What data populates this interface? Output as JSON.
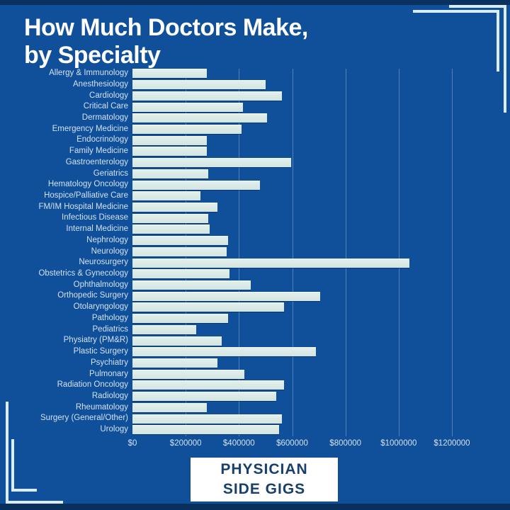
{
  "title": {
    "line1": "How Much Doctors Make,",
    "line2": "by Specialty"
  },
  "badge": {
    "line1": "PHYSICIAN",
    "line2": "SIDE GIGS"
  },
  "colors": {
    "background": "#104f9a",
    "bar_fill": "#d8e8e4",
    "title_text": "#ffffff",
    "axis_text": "#d2e2f3",
    "badge_background": "#ffffff",
    "badge_text": "#17406f",
    "frame_line": "#d9ecf7",
    "edge_strip": "#0a2d59"
  },
  "chart_data": {
    "type": "bar",
    "orientation": "horizontal",
    "title": "How Much Doctors Make, by Specialty",
    "xlabel": "",
    "ylabel": "",
    "xlim": [
      0,
      1200000
    ],
    "grid": true,
    "legend": false,
    "categories": [
      "Allergy & Immunology",
      "Anesthesiology",
      "Cardiology",
      "Critical Care",
      "Dermatology",
      "Emergency Medicine",
      "Endocrinology",
      "Family Medicine",
      "Gastroenterology",
      "Geriatrics",
      "Hematology Oncology",
      "Hospice/Palliative Care",
      "FM/IM Hospital Medicine",
      "Infectious Disease",
      "Internal Medicine",
      "Nephrology",
      "Neurology",
      "Neurosurgery",
      "Obstetrics & Gynecology",
      "Ophthalmology",
      "Orthopedic Surgery",
      "Otolaryngology",
      "Pathology",
      "Pediatrics",
      "Physiatry (PM&R)",
      "Plastic Surgery",
      "Psychiatry",
      "Pulmonary",
      "Radiation Oncology",
      "Radiology",
      "Rheumatology",
      "Surgery (General/Other)",
      "Urology"
    ],
    "values": [
      280000,
      500000,
      560000,
      415000,
      505000,
      410000,
      280000,
      280000,
      595000,
      285000,
      480000,
      255000,
      320000,
      285000,
      290000,
      360000,
      355000,
      1040000,
      365000,
      445000,
      705000,
      570000,
      360000,
      240000,
      335000,
      690000,
      320000,
      420000,
      570000,
      540000,
      280000,
      560000,
      550000
    ],
    "x_ticks": {
      "values": [
        0,
        200000,
        400000,
        600000,
        800000,
        1000000,
        1200000
      ],
      "labels": [
        "$0",
        "$200000",
        "$400000",
        "$600000",
        "$800000",
        "$1000000",
        "$1200000"
      ]
    }
  }
}
